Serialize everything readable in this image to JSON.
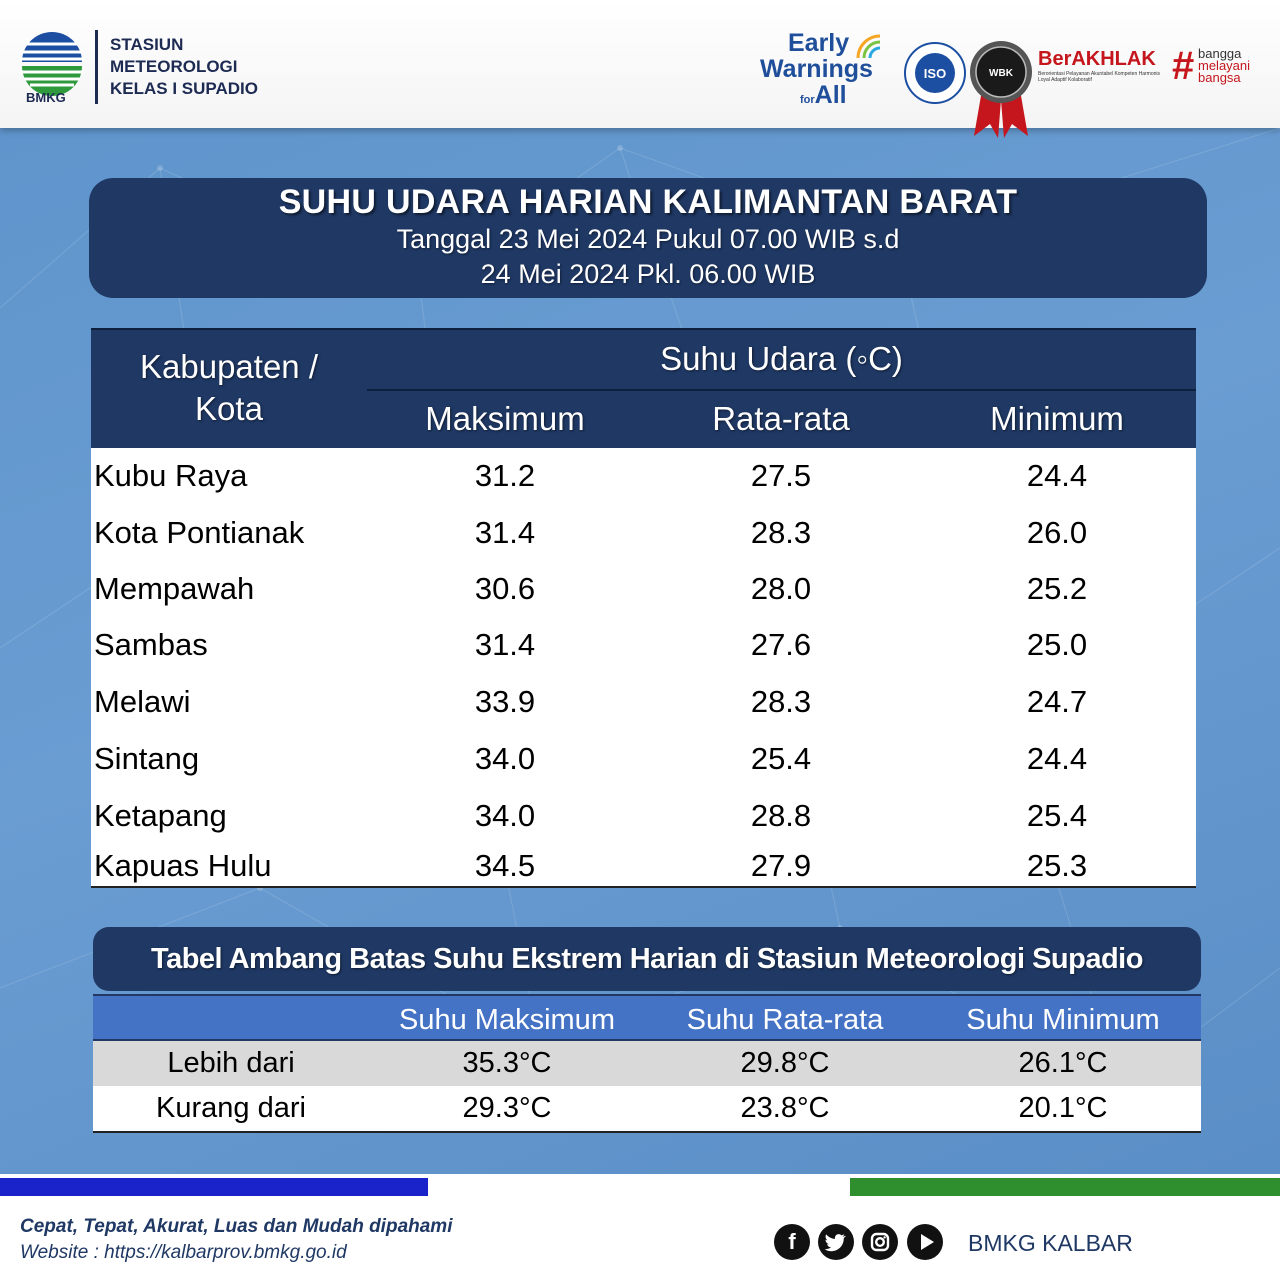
{
  "header": {
    "logo_text": "BMKG",
    "station_lines": [
      "STASIUN",
      "METEOROLOGI",
      "KELAS I SUPADIO"
    ],
    "ewa_lines": [
      "Early",
      "Warnings",
      "All"
    ],
    "ewa_for": "for",
    "berakhlak_title": "BerAKHLAK",
    "berakhlak_sub": "Berorientasi Pelayanan Akuntabel Kompeten Harmonis Loyal Adaptif Kolaboratif",
    "bangga_lines": [
      "bangga",
      "melayani",
      "bangsa"
    ]
  },
  "title": {
    "main": "SUHU UDARA HARIAN KALIMANTAN BARAT",
    "line1": "Tanggal 23 Mei 2024 Pukul 07.00 WIB s.d",
    "line2": "24 Mei 2024 Pkl. 06.00 WIB"
  },
  "main_table": {
    "header_region": "Kabupaten / Kota",
    "header_group": "Suhu Udara (◦C)",
    "columns": [
      "Maksimum",
      "Rata-rata",
      "Minimum"
    ],
    "rows": [
      {
        "name": "Kubu Raya",
        "max": "31.2",
        "avg": "27.5",
        "min": "24.4"
      },
      {
        "name": "Kota Pontianak",
        "max": "31.4",
        "avg": "28.3",
        "min": "26.0"
      },
      {
        "name": "Mempawah",
        "max": "30.6",
        "avg": "28.0",
        "min": "25.2"
      },
      {
        "name": "Sambas",
        "max": "31.4",
        "avg": "27.6",
        "min": "25.0"
      },
      {
        "name": "Melawi",
        "max": "33.9",
        "avg": "28.3",
        "min": "24.7"
      },
      {
        "name": "Sintang",
        "max": "34.0",
        "avg": "25.4",
        "min": "24.4"
      },
      {
        "name": "Ketapang",
        "max": "34.0",
        "avg": "28.8",
        "min": "25.4"
      },
      {
        "name": "Kapuas Hulu",
        "max": "34.5",
        "avg": "27.9",
        "min": "25.3"
      }
    ]
  },
  "threshold": {
    "title": "Tabel Ambang Batas Suhu Ekstrem Harian di Stasiun Meteorologi Supadio",
    "columns": [
      "Suhu Maksimum",
      "Suhu Rata-rata",
      "Suhu Minimum"
    ],
    "rows": [
      {
        "label": "Lebih dari",
        "max": "35.3°C",
        "avg": "29.8°C",
        "min": "26.1°C"
      },
      {
        "label": "Kurang dari",
        "max": "29.3°C",
        "avg": "23.8°C",
        "min": "20.1°C"
      }
    ]
  },
  "footer": {
    "tagline": "Cepat, Tepat, Akurat, Luas dan Mudah dipahami",
    "website": "Website : https://kalbarprov.bmkg.go.id",
    "account": "BMKG KALBAR",
    "social_icons": [
      "facebook-icon",
      "twitter-icon",
      "instagram-icon",
      "youtube-icon"
    ]
  },
  "colors": {
    "navy": "#1f3864",
    "header_blue": "#4472c4",
    "background": "#5f95cc",
    "bar_blue": "#1a22c9",
    "bar_green": "#2f8f2f"
  }
}
